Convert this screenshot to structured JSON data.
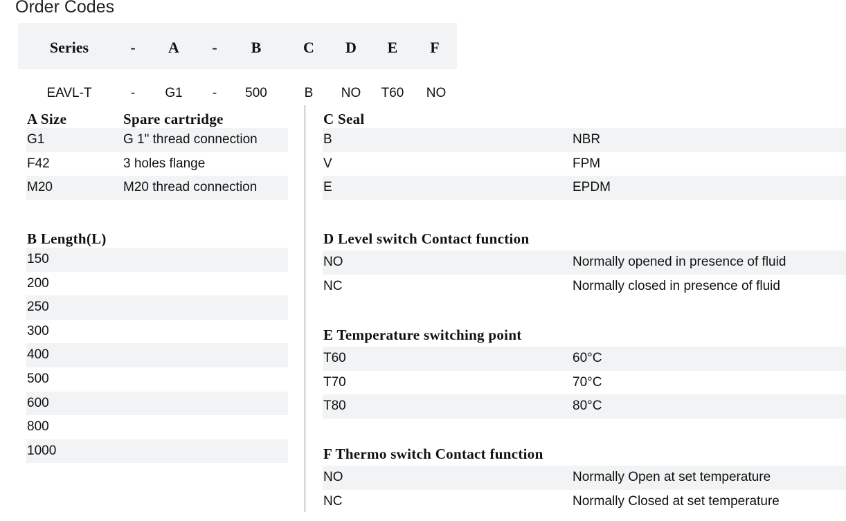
{
  "title": "Order Codes",
  "code_header": [
    "Series",
    "-",
    "A",
    "-",
    "B",
    "C",
    "D",
    "E",
    "F"
  ],
  "code_example": [
    "EAVL-T",
    "-",
    "G1",
    "-",
    "500",
    "B",
    "NO",
    "T60",
    "NO"
  ],
  "sections": {
    "a": {
      "title": "A Size",
      "title2": "Spare cartridge",
      "rows": [
        [
          "G1",
          "G 1\" thread connection"
        ],
        [
          "F42",
          "3 holes flange"
        ],
        [
          "M20",
          "M20 thread connection"
        ]
      ]
    },
    "b": {
      "title": "B Length(L)",
      "rows": [
        [
          "150"
        ],
        [
          "200"
        ],
        [
          "250"
        ],
        [
          "300"
        ],
        [
          "400"
        ],
        [
          "500"
        ],
        [
          "600"
        ],
        [
          "800"
        ],
        [
          "1000"
        ]
      ]
    },
    "c": {
      "title": "C Seal",
      "rows": [
        [
          "B",
          "NBR"
        ],
        [
          "V",
          "FPM"
        ],
        [
          "E",
          "EPDM"
        ]
      ]
    },
    "d": {
      "title": "D Level switch Contact function",
      "rows": [
        [
          "NO",
          "Normally opened in presence of fluid"
        ],
        [
          "NC",
          "Normally closed in presence of fluid"
        ]
      ]
    },
    "e": {
      "title": "E Temperature switching point",
      "rows": [
        [
          "T60",
          "60°C"
        ],
        [
          "T70",
          "70°C"
        ],
        [
          "T80",
          "80°C"
        ]
      ]
    },
    "f": {
      "title": "F Thermo switch Contact function",
      "rows": [
        [
          "NO",
          "Normally Open at set temperature"
        ],
        [
          "NC",
          "Normally Closed at set temperature"
        ]
      ]
    }
  }
}
